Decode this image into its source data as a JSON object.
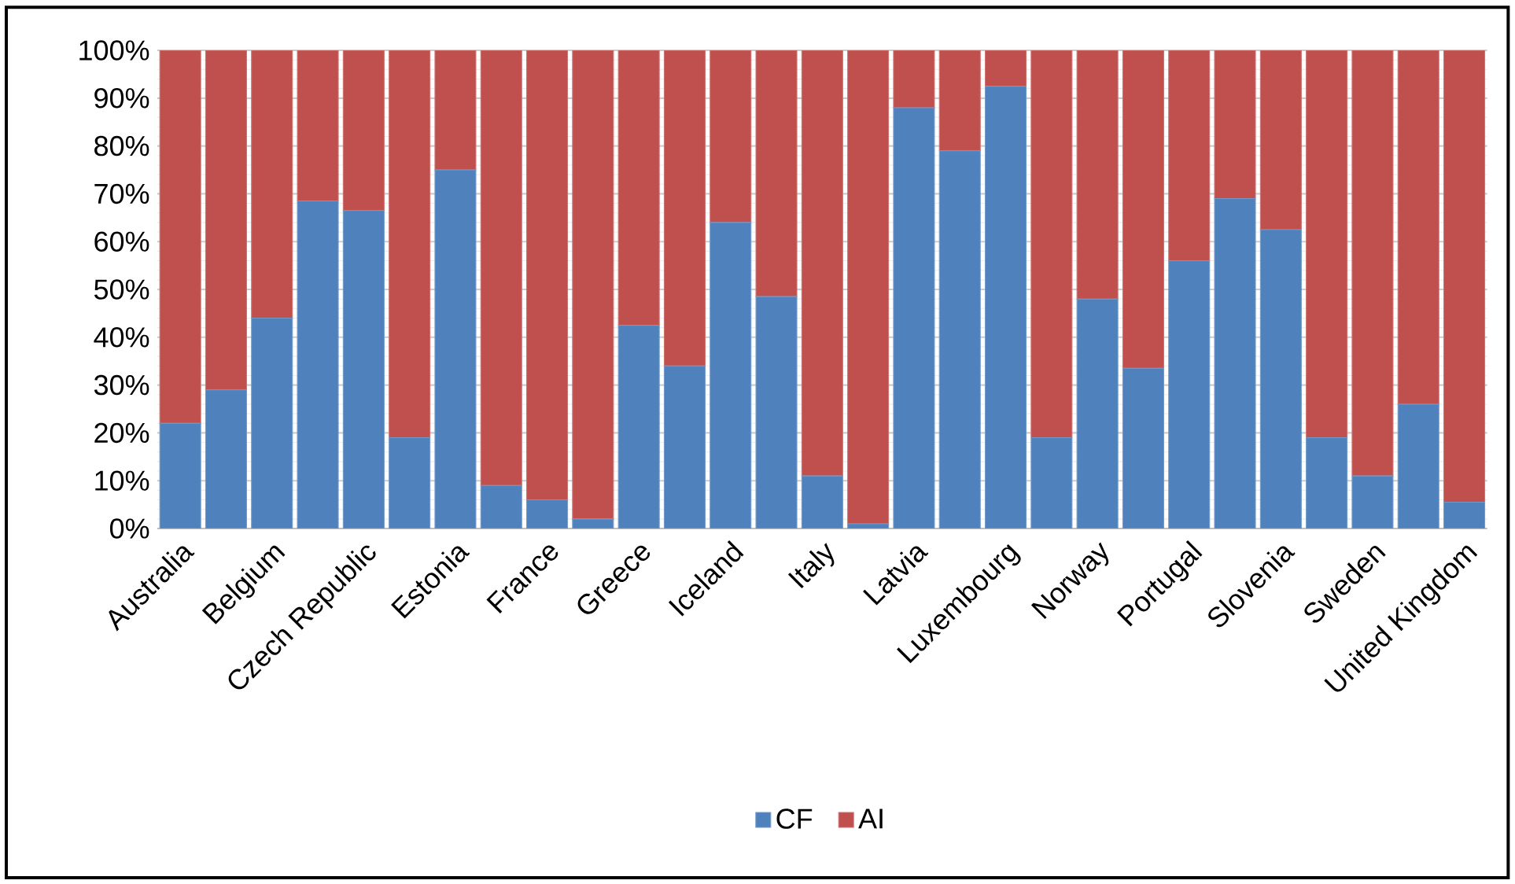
{
  "chart_data": {
    "type": "bar",
    "stacked": true,
    "categories": [
      "Australia",
      null,
      "Belgium",
      null,
      "Czech Republic",
      null,
      "Estonia",
      null,
      "France",
      null,
      "Greece",
      null,
      "Iceland",
      null,
      "Italy",
      null,
      "Latvia",
      null,
      "Luxembourg",
      null,
      "Norway",
      null,
      "Portugal",
      null,
      "Slovenia",
      null,
      "Sweden",
      null,
      "United Kingdom"
    ],
    "series": [
      {
        "name": "CF",
        "color": "#4f81bd",
        "values": [
          22,
          29,
          44,
          68.5,
          66.5,
          19,
          75,
          9,
          6,
          2,
          42.5,
          34,
          64,
          48.5,
          11,
          1,
          88,
          79,
          92.5,
          19,
          48,
          33.5,
          56,
          69,
          62.5,
          19,
          11,
          26,
          5.5
        ]
      },
      {
        "name": "AI",
        "color": "#c0504d",
        "values": [
          78,
          71,
          56,
          31.5,
          33.5,
          81,
          25,
          91,
          94,
          98,
          57.5,
          66,
          36,
          51.5,
          89,
          99,
          12,
          21,
          7.5,
          81,
          52,
          66.5,
          44,
          31,
          37.5,
          81,
          89,
          74,
          94.5
        ]
      }
    ],
    "ylim": [
      0,
      100
    ],
    "yticks": [
      {
        "value": 0,
        "label": "0%"
      },
      {
        "value": 10,
        "label": "10%"
      },
      {
        "value": 20,
        "label": "20%"
      },
      {
        "value": 30,
        "label": "30%"
      },
      {
        "value": 40,
        "label": "40%"
      },
      {
        "value": 50,
        "label": "50%"
      },
      {
        "value": 60,
        "label": "60%"
      },
      {
        "value": 70,
        "label": "70%"
      },
      {
        "value": 80,
        "label": "80%"
      },
      {
        "value": 90,
        "label": "90%"
      },
      {
        "value": 100,
        "label": "100%"
      }
    ],
    "grid": "y",
    "legend": "bottom"
  }
}
